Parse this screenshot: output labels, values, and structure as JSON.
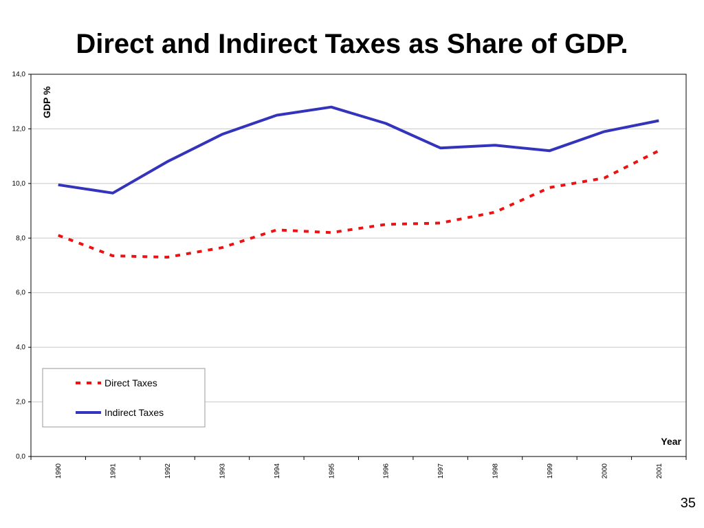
{
  "slide": {
    "title": "Direct and Indirect Taxes as Share of GDP.",
    "page_number": "35"
  },
  "chart_data": {
    "type": "line",
    "title": "Direct and Indirect Taxes as Share of GDP.",
    "xlabel": "Year",
    "ylabel": "GDP %",
    "x": [
      "1990",
      "1991",
      "1992",
      "1993",
      "1994",
      "1995",
      "1996",
      "1997",
      "1998",
      "1999",
      "2000",
      "2001"
    ],
    "y_ticks": [
      "0,0",
      "2,0",
      "4,0",
      "6,0",
      "8,0",
      "10,0",
      "12,0",
      "14,0"
    ],
    "ylim": [
      0,
      14
    ],
    "grid": "horizontal",
    "legend_position": "bottom-left",
    "series": [
      {
        "name": "Direct Taxes",
        "style": "dashed",
        "color": "#ee1111",
        "values": [
          8.1,
          7.35,
          7.3,
          7.65,
          8.3,
          8.2,
          8.5,
          8.55,
          8.95,
          9.85,
          10.2,
          11.2
        ]
      },
      {
        "name": "Indirect Taxes",
        "style": "solid",
        "color": "#3333bb",
        "values": [
          9.95,
          9.65,
          10.8,
          11.8,
          12.5,
          12.8,
          12.2,
          11.3,
          11.4,
          11.2,
          11.9,
          12.3
        ]
      }
    ]
  }
}
